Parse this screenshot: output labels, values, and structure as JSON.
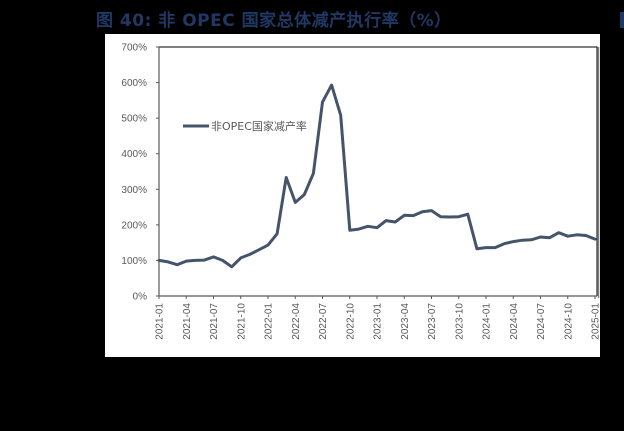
{
  "title": "图 40:  非 OPEC 国家总体减产执行率（%）",
  "chart_data": {
    "type": "line",
    "title": "图 40: 非 OPEC 国家总体减产执行率（%）",
    "xlabel": "",
    "ylabel": "",
    "ylim": [
      0,
      700
    ],
    "yticks": [
      "0%",
      "100%",
      "200%",
      "300%",
      "400%",
      "500%",
      "600%",
      "700%"
    ],
    "xtick_labels": [
      "2021-01",
      "2021-04",
      "2021-07",
      "2021-10",
      "2022-01",
      "2022-04",
      "2022-07",
      "2022-10",
      "2023-01",
      "2023-04",
      "2023-07",
      "2023-10",
      "2024-01",
      "2024-04",
      "2024-07",
      "2024-10",
      "2025-01"
    ],
    "legend_position": "upper-left inside",
    "grid": false,
    "series": [
      {
        "name": "非OPEC国家减产率",
        "color": "#44546a",
        "x": [
          "2021-01",
          "2021-02",
          "2021-03",
          "2021-04",
          "2021-05",
          "2021-06",
          "2021-07",
          "2021-08",
          "2021-09",
          "2021-10",
          "2021-11",
          "2021-12",
          "2022-01",
          "2022-02",
          "2022-03",
          "2022-04",
          "2022-05",
          "2022-06",
          "2022-07",
          "2022-08",
          "2022-09",
          "2022-10",
          "2022-11",
          "2022-12",
          "2023-01",
          "2023-02",
          "2023-03",
          "2023-04",
          "2023-05",
          "2023-06",
          "2023-07",
          "2023-08",
          "2023-09",
          "2023-10",
          "2023-11",
          "2023-12",
          "2024-01",
          "2024-02",
          "2024-03",
          "2024-04",
          "2024-05",
          "2024-06",
          "2024-07",
          "2024-08",
          "2024-09",
          "2024-10",
          "2024-11",
          "2024-12",
          "2025-01"
        ],
        "values": [
          100,
          96,
          88,
          98,
          100,
          101,
          110,
          100,
          82,
          107,
          117,
          130,
          143,
          175,
          333,
          263,
          285,
          345,
          545,
          593,
          508,
          185,
          188,
          196,
          192,
          212,
          208,
          227,
          226,
          237,
          240,
          223,
          222,
          223,
          230,
          133,
          136,
          136,
          147,
          153,
          157,
          158,
          166,
          164,
          178,
          168,
          172,
          170,
          160
        ]
      }
    ]
  }
}
